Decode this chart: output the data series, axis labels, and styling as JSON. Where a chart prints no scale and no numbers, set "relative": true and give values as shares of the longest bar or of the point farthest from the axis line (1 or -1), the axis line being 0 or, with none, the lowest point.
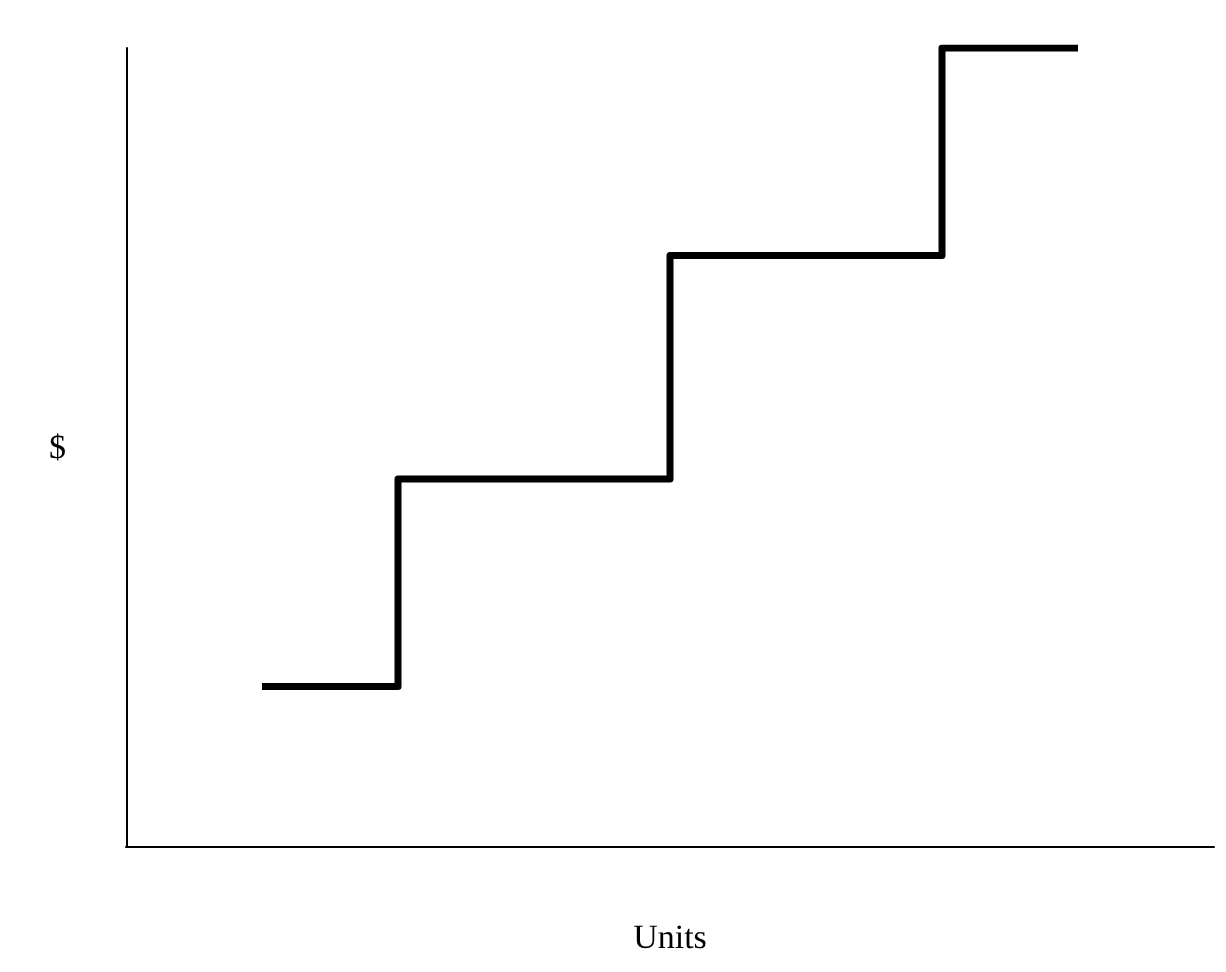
{
  "chart_data": {
    "type": "step",
    "relative": true,
    "xlabel": "Units",
    "ylabel": "$",
    "categories": [
      null,
      null,
      null,
      null
    ],
    "series": [
      {
        "color": "#000000",
        "values": [
          0.2,
          0.46,
          0.74,
          1
        ]
      }
    ],
    "grid": false,
    "marker": "none",
    "line_style": "solid"
  }
}
